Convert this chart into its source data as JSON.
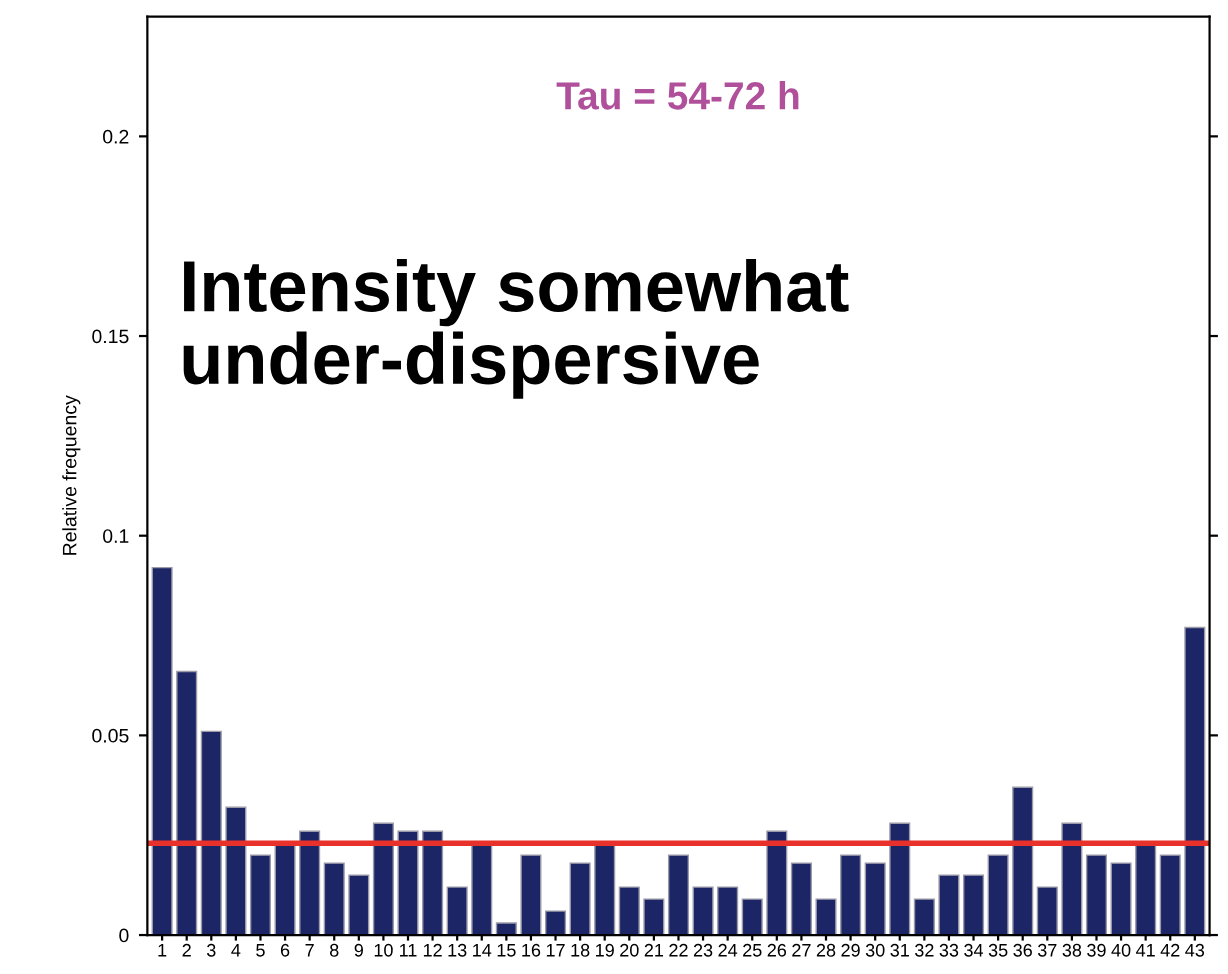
{
  "chart_data": {
    "type": "bar",
    "ylabel": "Relative frequency",
    "categories": [
      "1",
      "2",
      "3",
      "4",
      "5",
      "6",
      "7",
      "8",
      "9",
      "10",
      "11",
      "12",
      "13",
      "14",
      "15",
      "16",
      "17",
      "18",
      "19",
      "20",
      "21",
      "22",
      "23",
      "24",
      "25",
      "26",
      "27",
      "28",
      "29",
      "30",
      "31",
      "32",
      "33",
      "34",
      "35",
      "36",
      "37",
      "38",
      "39",
      "40",
      "41",
      "42",
      "43"
    ],
    "values": [
      0.092,
      0.066,
      0.051,
      0.032,
      0.02,
      0.023,
      0.026,
      0.018,
      0.015,
      0.028,
      0.026,
      0.026,
      0.012,
      0.023,
      0.003,
      0.02,
      0.006,
      0.018,
      0.023,
      0.012,
      0.009,
      0.02,
      0.012,
      0.012,
      0.009,
      0.026,
      0.018,
      0.009,
      0.02,
      0.018,
      0.028,
      0.009,
      0.015,
      0.015,
      0.02,
      0.037,
      0.012,
      0.028,
      0.02,
      0.018,
      0.023,
      0.02,
      0.077
    ],
    "color": "#1c2566",
    "ylim": [
      0,
      0.23
    ],
    "yticks": [
      0,
      0.05,
      0.1,
      0.15,
      0.2
    ],
    "ref_lines": [
      {
        "axis": "y",
        "value": 0.023,
        "color": "#e8312a"
      }
    ],
    "annotations": [
      "Tau = 54-72 h",
      "Intensity somewhat under-dispersive"
    ],
    "grid": false,
    "legend": false
  }
}
